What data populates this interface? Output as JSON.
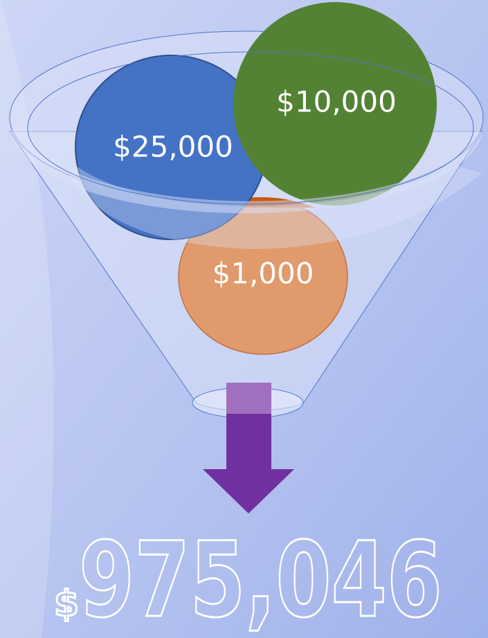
{
  "funnel": {
    "inputs": [
      {
        "label": "$25,000"
      },
      {
        "label": "$10,000"
      },
      {
        "label": "$1,000"
      }
    ]
  },
  "total": {
    "symbol": "$",
    "amount": "975,046"
  }
}
